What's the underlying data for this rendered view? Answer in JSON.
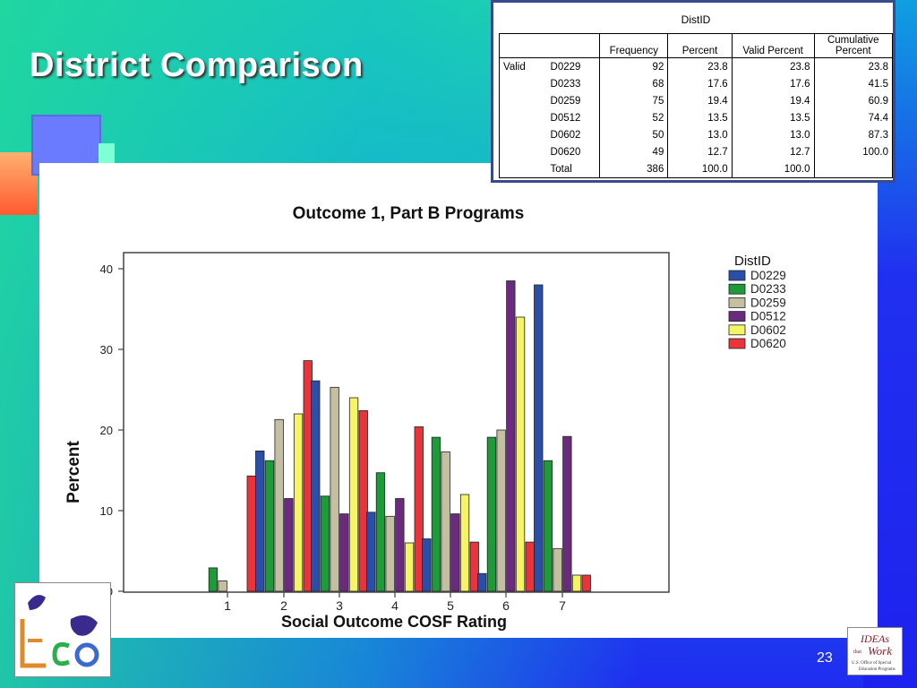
{
  "slide": {
    "title": "District Comparison",
    "page_number": "23"
  },
  "freq_table": {
    "title": "DistID",
    "headers": [
      "Frequency",
      "Percent",
      "Valid Percent",
      "Cumulative Percent"
    ],
    "cum_header_line1": "Cumulative",
    "cum_header_line2": "Percent",
    "valid_label": "Valid",
    "rows": [
      {
        "id": "D0229",
        "frequency": "92",
        "percent": "23.8",
        "valid_percent": "23.8",
        "cumulative": "23.8"
      },
      {
        "id": "D0233",
        "frequency": "68",
        "percent": "17.6",
        "valid_percent": "17.6",
        "cumulative": "41.5"
      },
      {
        "id": "D0259",
        "frequency": "75",
        "percent": "19.4",
        "valid_percent": "19.4",
        "cumulative": "60.9"
      },
      {
        "id": "D0512",
        "frequency": "52",
        "percent": "13.5",
        "valid_percent": "13.5",
        "cumulative": "74.4"
      },
      {
        "id": "D0602",
        "frequency": "50",
        "percent": "13.0",
        "valid_percent": "13.0",
        "cumulative": "87.3"
      },
      {
        "id": "D0620",
        "frequency": "49",
        "percent": "12.7",
        "valid_percent": "12.7",
        "cumulative": "100.0"
      }
    ],
    "total": {
      "label": "Total",
      "frequency": "386",
      "percent": "100.0",
      "valid_percent": "100.0"
    }
  },
  "chart_data": {
    "type": "bar",
    "title": "Outcome 1, Part B Programs",
    "xlabel": "Social Outcome COSF Rating",
    "ylabel": "Percent",
    "ylim": [
      0,
      40
    ],
    "yticks": [
      0,
      10,
      20,
      30,
      40
    ],
    "categories": [
      "1",
      "2",
      "3",
      "4",
      "5",
      "6",
      "7"
    ],
    "legend_title": "DistID",
    "legend_position": "top-right",
    "series": [
      {
        "name": "D0229",
        "color": "#2b4fa8",
        "values": [
          0,
          17.4,
          26.1,
          9.8,
          6.5,
          2.2,
          38.0
        ]
      },
      {
        "name": "D0233",
        "color": "#1e9a3a",
        "values": [
          2.9,
          16.2,
          11.8,
          14.7,
          19.1,
          19.1,
          16.2
        ]
      },
      {
        "name": "D0259",
        "color": "#c4bfa0",
        "values": [
          1.3,
          21.3,
          25.3,
          9.3,
          17.3,
          20.0,
          5.3
        ]
      },
      {
        "name": "D0512",
        "color": "#6a2a7e",
        "values": [
          0,
          11.5,
          9.6,
          11.5,
          9.6,
          38.5,
          19.2
        ]
      },
      {
        "name": "D0602",
        "color": "#f4f466",
        "values": [
          0,
          22.0,
          24.0,
          6.0,
          12.0,
          34.0,
          2.0
        ]
      },
      {
        "name": "D0620",
        "color": "#e8343a",
        "values": [
          14.3,
          28.6,
          22.4,
          20.4,
          6.1,
          6.1,
          2.0
        ]
      }
    ]
  }
}
